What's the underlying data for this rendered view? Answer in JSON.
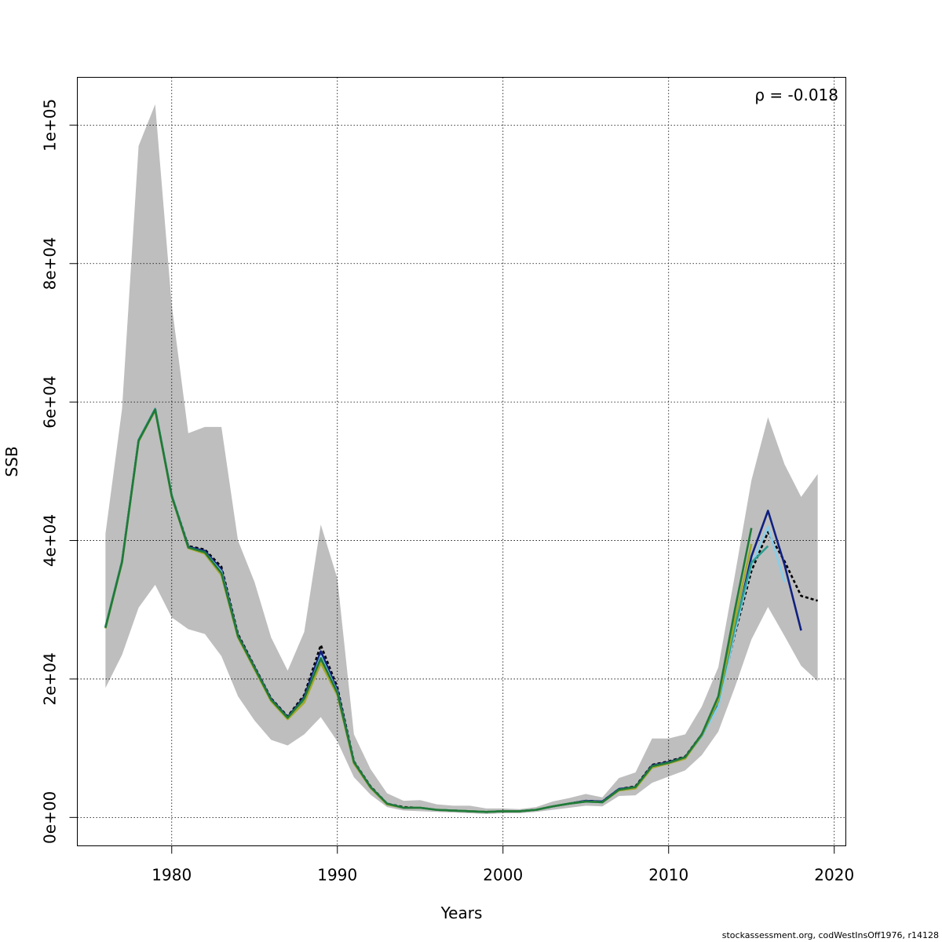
{
  "chart_data": {
    "type": "line",
    "xlabel": "Years",
    "ylabel": "SSB",
    "xlim": [
      1974.3,
      2020.7
    ],
    "ylim": [
      -4100,
      106900
    ],
    "x_ticks": [
      1980,
      1990,
      2000,
      2010,
      2020
    ],
    "y_ticks": [
      0,
      20000,
      40000,
      60000,
      80000,
      100000
    ],
    "y_tick_labels": [
      "0e+00",
      "2e+04",
      "4e+04",
      "6e+04",
      "8e+04",
      "1e+05"
    ],
    "grid": true,
    "annotation": "ρ = -0.018",
    "band": {
      "years": [
        1976,
        1977,
        1978,
        1979,
        1980,
        1981,
        1982,
        1983,
        1984,
        1985,
        1986,
        1987,
        1988,
        1989,
        1990,
        1991,
        1992,
        1993,
        1994,
        1995,
        1996,
        1997,
        1998,
        1999,
        2000,
        2001,
        2002,
        2003,
        2004,
        2005,
        2006,
        2007,
        2008,
        2009,
        2010,
        2011,
        2012,
        2013,
        2014,
        2015,
        2016,
        2017,
        2018,
        2019
      ],
      "upper": [
        41000,
        59000,
        97000,
        103000,
        74000,
        55500,
        56400,
        56400,
        40000,
        34000,
        26000,
        21200,
        26800,
        42300,
        34500,
        12000,
        7000,
        3500,
        2400,
        2500,
        1900,
        1700,
        1700,
        1300,
        1300,
        1200,
        1500,
        2300,
        2800,
        3400,
        2900,
        5700,
        6500,
        11400,
        11400,
        12000,
        16000,
        21700,
        35000,
        48700,
        57800,
        51000,
        46300,
        49600
      ],
      "lower": [
        18700,
        23500,
        30300,
        33600,
        28900,
        27200,
        26500,
        23300,
        17500,
        14000,
        11200,
        10400,
        12000,
        14500,
        11000,
        5800,
        3300,
        1500,
        1000,
        900,
        800,
        700,
        600,
        500,
        600,
        600,
        800,
        1100,
        1400,
        1700,
        1600,
        3100,
        3200,
        5000,
        5900,
        6800,
        9000,
        12400,
        18800,
        25700,
        30400,
        26200,
        21900,
        19700
      ],
      "color": "#bebebe"
    },
    "series": [
      {
        "style": "dashed",
        "color": "#000000",
        "x": [
          1976,
          1977,
          1978,
          1979,
          1980,
          1981,
          1982,
          1983,
          1984,
          1985,
          1986,
          1987,
          1988,
          1989,
          1990,
          1991,
          1992,
          1993,
          1994,
          1995,
          1996,
          1997,
          1998,
          1999,
          2000,
          2001,
          2002,
          2003,
          2004,
          2005,
          2006,
          2007,
          2008,
          2009,
          2010,
          2011,
          2012,
          2013,
          2014,
          2015,
          2016,
          2017,
          2018,
          2019
        ],
        "values": [
          27500,
          37000,
          54500,
          59000,
          46500,
          39200,
          38700,
          36200,
          26500,
          21800,
          17200,
          14600,
          17700,
          24900,
          18800,
          8100,
          4500,
          2000,
          1500,
          1400,
          1100,
          1000,
          900,
          800,
          900,
          900,
          1100,
          1600,
          2000,
          2400,
          2300,
          4100,
          4500,
          7600,
          8100,
          8800,
          12000,
          16500,
          26500,
          35600,
          41200,
          37000,
          32000,
          31300
        ]
      },
      {
        "style": "solid",
        "color": "#0f2080",
        "x": [
          1976,
          1977,
          1978,
          1979,
          1980,
          1981,
          1982,
          1983,
          1984,
          1985,
          1986,
          1987,
          1988,
          1989,
          1990,
          1991,
          1992,
          1993,
          1994,
          1995,
          1996,
          1997,
          1998,
          1999,
          2000,
          2001,
          2002,
          2003,
          2004,
          2005,
          2006,
          2007,
          2008,
          2009,
          2010,
          2011,
          2012,
          2013,
          2014,
          2015,
          2016,
          2017,
          2018
        ],
        "values": [
          27500,
          37000,
          54500,
          59000,
          46500,
          39100,
          38500,
          35800,
          26300,
          21700,
          17100,
          14500,
          17400,
          24000,
          18400,
          8000,
          4400,
          2000,
          1400,
          1400,
          1100,
          1000,
          900,
          800,
          900,
          900,
          1100,
          1600,
          2000,
          2400,
          2300,
          4100,
          4400,
          7500,
          8000,
          8700,
          12000,
          16200,
          27000,
          37700,
          44300,
          36500,
          27000
        ]
      },
      {
        "style": "solid",
        "color": "#87ceeb",
        "x": [
          1976,
          1977,
          1978,
          1979,
          1980,
          1981,
          1982,
          1983,
          1984,
          1985,
          1986,
          1987,
          1988,
          1989,
          1990,
          1991,
          1992,
          1993,
          1994,
          1995,
          1996,
          1997,
          1998,
          1999,
          2000,
          2001,
          2002,
          2003,
          2004,
          2005,
          2006,
          2007,
          2008,
          2009,
          2010,
          2011,
          2012,
          2013,
          2014,
          2015,
          2016,
          2017
        ],
        "values": [
          27500,
          37000,
          54500,
          59000,
          46500,
          39000,
          38300,
          35500,
          26200,
          21600,
          17000,
          14400,
          17000,
          23300,
          18100,
          8000,
          4400,
          2000,
          1400,
          1400,
          1100,
          1000,
          900,
          800,
          900,
          900,
          1100,
          1600,
          2000,
          2300,
          2200,
          4000,
          4300,
          7400,
          7900,
          8600,
          11700,
          16000,
          26800,
          36500,
          42000,
          34000
        ]
      },
      {
        "style": "solid",
        "color": "#2a9d8f",
        "x": [
          1976,
          1977,
          1978,
          1979,
          1980,
          1981,
          1982,
          1983,
          1984,
          1985,
          1986,
          1987,
          1988,
          1989,
          1990,
          1991,
          1992,
          1993,
          1994,
          1995,
          1996,
          1997,
          1998,
          1999,
          2000,
          2001,
          2002,
          2003,
          2004,
          2005,
          2006,
          2007,
          2008,
          2009,
          2010,
          2011,
          2012,
          2013,
          2014,
          2015,
          2016
        ],
        "values": [
          27500,
          37000,
          54500,
          59000,
          46500,
          39000,
          38200,
          35200,
          26100,
          21500,
          16900,
          14300,
          16800,
          22800,
          17900,
          7900,
          4300,
          1900,
          1400,
          1400,
          1100,
          1000,
          900,
          800,
          900,
          900,
          1100,
          1600,
          2000,
          2300,
          2200,
          4000,
          4300,
          7300,
          7900,
          8600,
          11800,
          16800,
          27500,
          36800,
          39200
        ]
      },
      {
        "style": "solid",
        "color": "#a5a82a",
        "x": [
          1976,
          1977,
          1978,
          1979,
          1980,
          1981,
          1982,
          1983,
          1984,
          1985,
          1986,
          1987,
          1988,
          1989,
          1990,
          1991,
          1992,
          1993,
          1994,
          1995,
          1996,
          1997,
          1998,
          1999,
          2000,
          2001,
          2002,
          2003,
          2004,
          2005,
          2006,
          2007,
          2008,
          2009,
          2010,
          2011,
          2012,
          2013,
          2014,
          2015
        ],
        "values": [
          27300,
          36800,
          54300,
          58800,
          46300,
          38900,
          38100,
          35000,
          26000,
          21400,
          16800,
          14200,
          16600,
          22300,
          17700,
          7800,
          4300,
          1900,
          1400,
          1400,
          1100,
          1000,
          900,
          800,
          900,
          900,
          1100,
          1600,
          2000,
          2300,
          2200,
          3900,
          4200,
          7200,
          7800,
          8500,
          11900,
          17000,
          28500,
          39500
        ]
      },
      {
        "style": "solid",
        "color": "#1f7a3a",
        "x": [
          1976,
          1977,
          1978,
          1979,
          1980,
          1981,
          1982,
          1983,
          1984,
          1985,
          1986,
          1987,
          1988,
          1989,
          1990,
          1991,
          1992,
          1993,
          1994,
          1995,
          1996,
          1997,
          1998,
          1999,
          2000,
          2001,
          2002,
          2003,
          2004,
          2005,
          2006,
          2007,
          2008,
          2009,
          2010,
          2011,
          2012,
          2013,
          2014,
          2015
        ],
        "values": [
          27400,
          36900,
          54400,
          58900,
          46400,
          39000,
          38300,
          35300,
          26200,
          21600,
          17000,
          14400,
          17200,
          23000,
          18000,
          8000,
          4400,
          2000,
          1400,
          1400,
          1100,
          1000,
          900,
          800,
          900,
          900,
          1100,
          1600,
          2000,
          2300,
          2200,
          4000,
          4400,
          7400,
          7900,
          8700,
          12000,
          17500,
          30000,
          41800
        ]
      }
    ]
  },
  "footer": "stockassessment.org, codWestInsOff1976, r14128"
}
